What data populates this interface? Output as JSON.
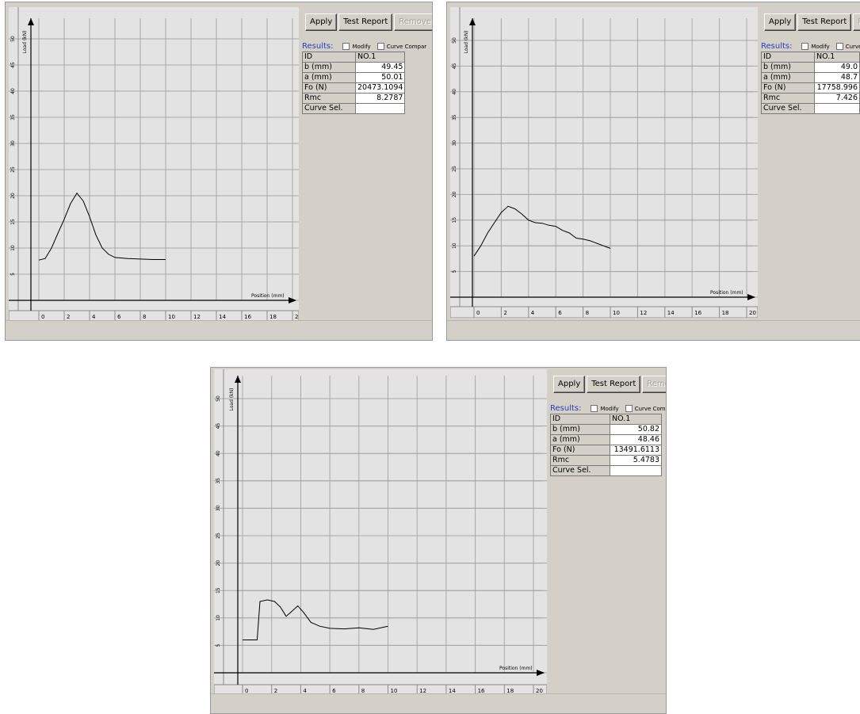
{
  "axes": {
    "xlabel": "Position (mm)",
    "ylabel": "Load (kN)",
    "x_ticks": [
      "0",
      "2",
      "4",
      "6",
      "8",
      "10",
      "12",
      "14",
      "16",
      "18",
      "20"
    ],
    "y_ticks": [
      "5",
      "10",
      "15",
      "20",
      "25",
      "30",
      "35",
      "40",
      "45",
      "50"
    ]
  },
  "buttons": {
    "apply": "Apply",
    "test_report": "Test Report",
    "remove": "Remove Ext"
  },
  "results_label": "Results:",
  "checkboxes": {
    "modify": "Modify",
    "curve_compare": "Curve Compar"
  },
  "row_labels": {
    "id": "ID",
    "b": "b (mm)",
    "a": "a (mm)",
    "fo": "Fo (N)",
    "rmc": "Rmc",
    "curve_sel": "Curve Sel."
  },
  "screens": [
    {
      "id": "NO.1",
      "b": "49.45",
      "a": "50.01",
      "fo": "20473.1094",
      "rmc": "8.2787",
      "curve_sel": ""
    },
    {
      "id": "NO.1",
      "b": "49.0",
      "a": "48.7",
      "fo": "17758.996",
      "rmc": "7.426",
      "curve_sel": ""
    },
    {
      "id": "NO.1",
      "b": "50.82",
      "a": "48.46",
      "fo": "13491.6113",
      "rmc": "5.4783",
      "curve_sel": ""
    }
  ],
  "chart_data": [
    {
      "type": "line",
      "xlabel": "Position (mm)",
      "ylabel": "Load (kN)",
      "xlim": [
        -1,
        21
      ],
      "ylim": [
        0,
        53
      ],
      "x": [
        0,
        0.5,
        1,
        1.5,
        2,
        2.5,
        3,
        3.5,
        4,
        4.5,
        5,
        5.5,
        6,
        7,
        8,
        9,
        10
      ],
      "y": [
        7.7,
        8,
        10,
        12.8,
        15.5,
        18.5,
        20.5,
        19,
        16,
        12.5,
        10,
        8.8,
        8.2,
        8,
        7.9,
        7.8,
        7.8
      ]
    },
    {
      "type": "line",
      "xlabel": "Position (mm)",
      "ylabel": "Load (kN)",
      "xlim": [
        -1,
        21
      ],
      "ylim": [
        0,
        53
      ],
      "x": [
        0,
        0.5,
        1,
        1.5,
        2,
        2.5,
        3,
        3.5,
        4,
        4.5,
        5,
        5.5,
        6,
        6.5,
        7,
        7.5,
        8,
        8.5,
        9,
        9.5,
        10
      ],
      "y": [
        8,
        10,
        12.5,
        14.5,
        16.5,
        17.7,
        17.2,
        16.2,
        15,
        14.5,
        14.4,
        14,
        13.8,
        13,
        12.5,
        11.5,
        11.3,
        11,
        10.5,
        10,
        9.5
      ]
    },
    {
      "type": "line",
      "xlabel": "Position (mm)",
      "ylabel": "Load (kN)",
      "xlim": [
        -1,
        21
      ],
      "ylim": [
        0,
        53
      ],
      "x": [
        0,
        1,
        1.2,
        1.7,
        2.2,
        2.6,
        3,
        3.3,
        3.8,
        4.2,
        4.7,
        5.3,
        6,
        7,
        8,
        9,
        10
      ],
      "y": [
        6,
        6,
        13,
        13.3,
        13,
        12,
        10.3,
        11,
        12.2,
        11,
        9.2,
        8.5,
        8.1,
        8,
        8.2,
        7.9,
        8.5
      ]
    }
  ]
}
